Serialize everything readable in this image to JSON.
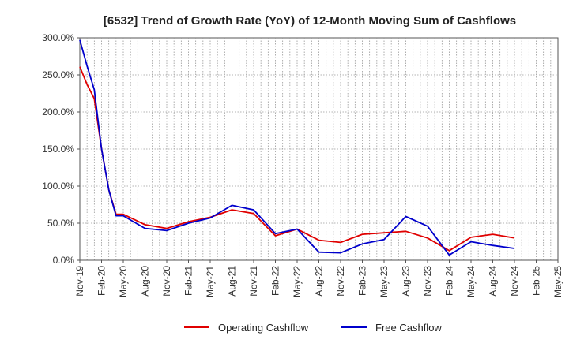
{
  "chart_data": {
    "type": "line",
    "title": "[6532]  Trend of Growth Rate (YoY) of 12-Month Moving Sum of Cashflows",
    "xlabel": "",
    "ylabel": "",
    "x_start": "Nov-19",
    "x_end": "May-25",
    "x_tick_labels": [
      "Nov-19",
      "Feb-20",
      "May-20",
      "Aug-20",
      "Nov-20",
      "Feb-21",
      "May-21",
      "Aug-21",
      "Nov-21",
      "Feb-22",
      "May-22",
      "Aug-22",
      "Nov-22",
      "Feb-23",
      "May-23",
      "Aug-23",
      "Nov-23",
      "Feb-24",
      "May-24",
      "Aug-24",
      "Nov-24",
      "Feb-25",
      "May-25"
    ],
    "y_tick_labels": [
      "0.0%",
      "50.0%",
      "100.0%",
      "150.0%",
      "200.0%",
      "250.0%",
      "300.0%"
    ],
    "ylim": [
      0,
      300
    ],
    "y_unit": "%",
    "grid": true,
    "legend_position": "bottom-center",
    "series": [
      {
        "name": "Operating Cashflow",
        "color": "#e00000",
        "x": [
          "Nov-19",
          "Dec-19",
          "Jan-20",
          "Feb-20",
          "Mar-20",
          "Apr-20",
          "May-20",
          "Aug-20",
          "Nov-20",
          "Feb-21",
          "May-21",
          "Aug-21",
          "Nov-21",
          "Feb-22",
          "May-22",
          "Aug-22",
          "Nov-22",
          "Feb-23",
          "May-23",
          "Aug-23",
          "Nov-23",
          "Feb-24",
          "May-24",
          "Aug-24",
          "Nov-24"
        ],
        "values": [
          261,
          237,
          218,
          150,
          95,
          62,
          62,
          48,
          43,
          52,
          58,
          68,
          63,
          33,
          42,
          27,
          24,
          35,
          37,
          39,
          30,
          13,
          31,
          35,
          30
        ]
      },
      {
        "name": "Free Cashflow",
        "color": "#0000cc",
        "x": [
          "Nov-19",
          "Dec-19",
          "Jan-20",
          "Feb-20",
          "Mar-20",
          "Apr-20",
          "May-20",
          "Aug-20",
          "Nov-20",
          "Feb-21",
          "May-21",
          "Aug-21",
          "Nov-21",
          "Feb-22",
          "May-22",
          "Aug-22",
          "Nov-22",
          "Feb-23",
          "May-23",
          "Aug-23",
          "Nov-23",
          "Feb-24",
          "May-24",
          "Aug-24",
          "Nov-24"
        ],
        "values": [
          297,
          262,
          230,
          150,
          95,
          60,
          60,
          43,
          40,
          50,
          57,
          74,
          68,
          36,
          42,
          11,
          10,
          22,
          28,
          59,
          46,
          7,
          25,
          20,
          16
        ]
      }
    ]
  }
}
